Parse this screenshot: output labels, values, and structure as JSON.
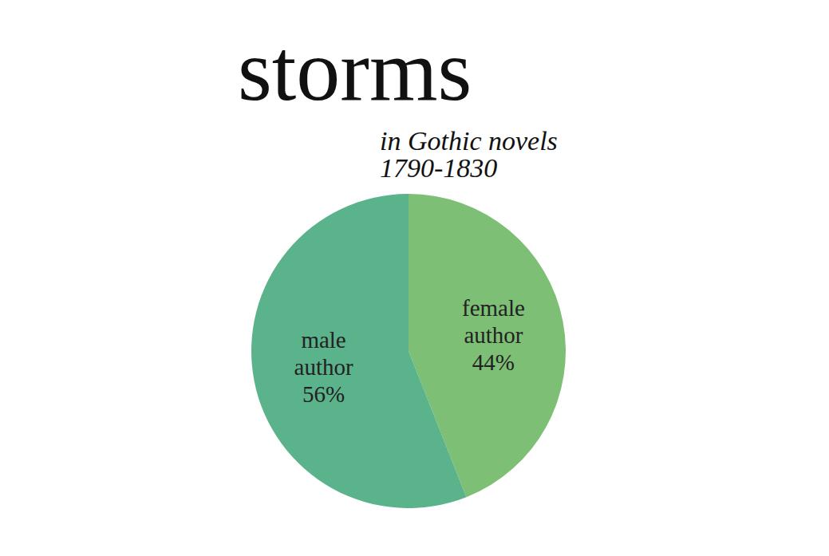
{
  "chart_data": {
    "type": "pie",
    "title": "storms",
    "subtitle": "in Gothic novels 1790-1830",
    "categories": [
      "female author",
      "male author"
    ],
    "values": [
      44,
      56
    ],
    "value_labels": [
      "44%",
      "56%"
    ],
    "colors": [
      "#7dbf75",
      "#5bb38b"
    ],
    "data_labels": true
  }
}
